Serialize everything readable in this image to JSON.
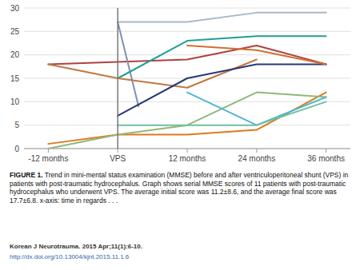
{
  "chart_data": {
    "type": "line",
    "xlim": [
      -0.35,
      4.35
    ],
    "xticks": [
      {
        "value": 0,
        "label": "-12 months"
      },
      {
        "value": 1,
        "label": "VPS"
      },
      {
        "value": 2,
        "label": "12 months"
      },
      {
        "value": 3,
        "label": "24 months"
      },
      {
        "value": 4,
        "label": "36 months"
      }
    ],
    "ylim": [
      0,
      30
    ],
    "yticks": [
      0,
      5,
      10,
      15,
      20,
      25,
      30
    ],
    "grid": true,
    "vline_x": 1,
    "series": [
      {
        "color": "#b04040",
        "x": [
          0,
          1,
          2,
          3,
          4
        ],
        "values": [
          18,
          18.5,
          19,
          22,
          18
        ]
      },
      {
        "color": "#8090b0",
        "x": [
          1,
          1.3
        ],
        "values": [
          27,
          9
        ]
      },
      {
        "color": "#20a090",
        "x": [
          1,
          2,
          3,
          4
        ],
        "values": [
          15,
          23,
          24,
          24
        ]
      },
      {
        "color": "#a8b8c8",
        "x": [
          1,
          2,
          3,
          4
        ],
        "values": [
          27,
          27,
          29,
          29
        ]
      },
      {
        "color": "#c07840",
        "x": [
          0,
          1,
          2,
          3
        ],
        "values": [
          18,
          15,
          13,
          19
        ]
      },
      {
        "color": "#e07820",
        "x": [
          0,
          1,
          2,
          3,
          4
        ],
        "values": [
          1,
          3,
          3,
          4,
          12
        ]
      },
      {
        "color": "#90b878",
        "x": [
          0,
          1,
          2,
          3,
          4
        ],
        "values": [
          0,
          3,
          5,
          12,
          11
        ]
      },
      {
        "color": "#283878",
        "x": [
          1,
          2,
          3,
          4
        ],
        "values": [
          7,
          15,
          18,
          18
        ]
      },
      {
        "color": "#50b8d0",
        "x": [
          2,
          3,
          4
        ],
        "values": [
          12,
          5,
          11
        ]
      },
      {
        "color": "#70c0a0",
        "x": [
          1,
          2,
          3,
          4
        ],
        "values": [
          5,
          5,
          5,
          10
        ]
      },
      {
        "color": "#d07030",
        "x": [
          2,
          3,
          4
        ],
        "values": [
          22,
          21,
          18
        ]
      }
    ],
    "caption_label": "FIGURE 1.",
    "caption": " Trend in mini-mental status examination (MMSE) before and after ventriculoperitoneal shunt (VPS) in patients with post-traumatic hydrocephalus. Graph shows serial MMSE scores of 11 patients with post-traumatic hydrocephalus who underwent VPS. The average initial score was 11.2±8.6, and the average final score was 17.7±6.8. x-axis: time in regards . . .",
    "journal": "Korean J Neurotrauma. 2015 Apr;11(1):6-10.",
    "doi": "http://dx.doi.org/10.13004/kjnt.2015.11.1.6"
  }
}
